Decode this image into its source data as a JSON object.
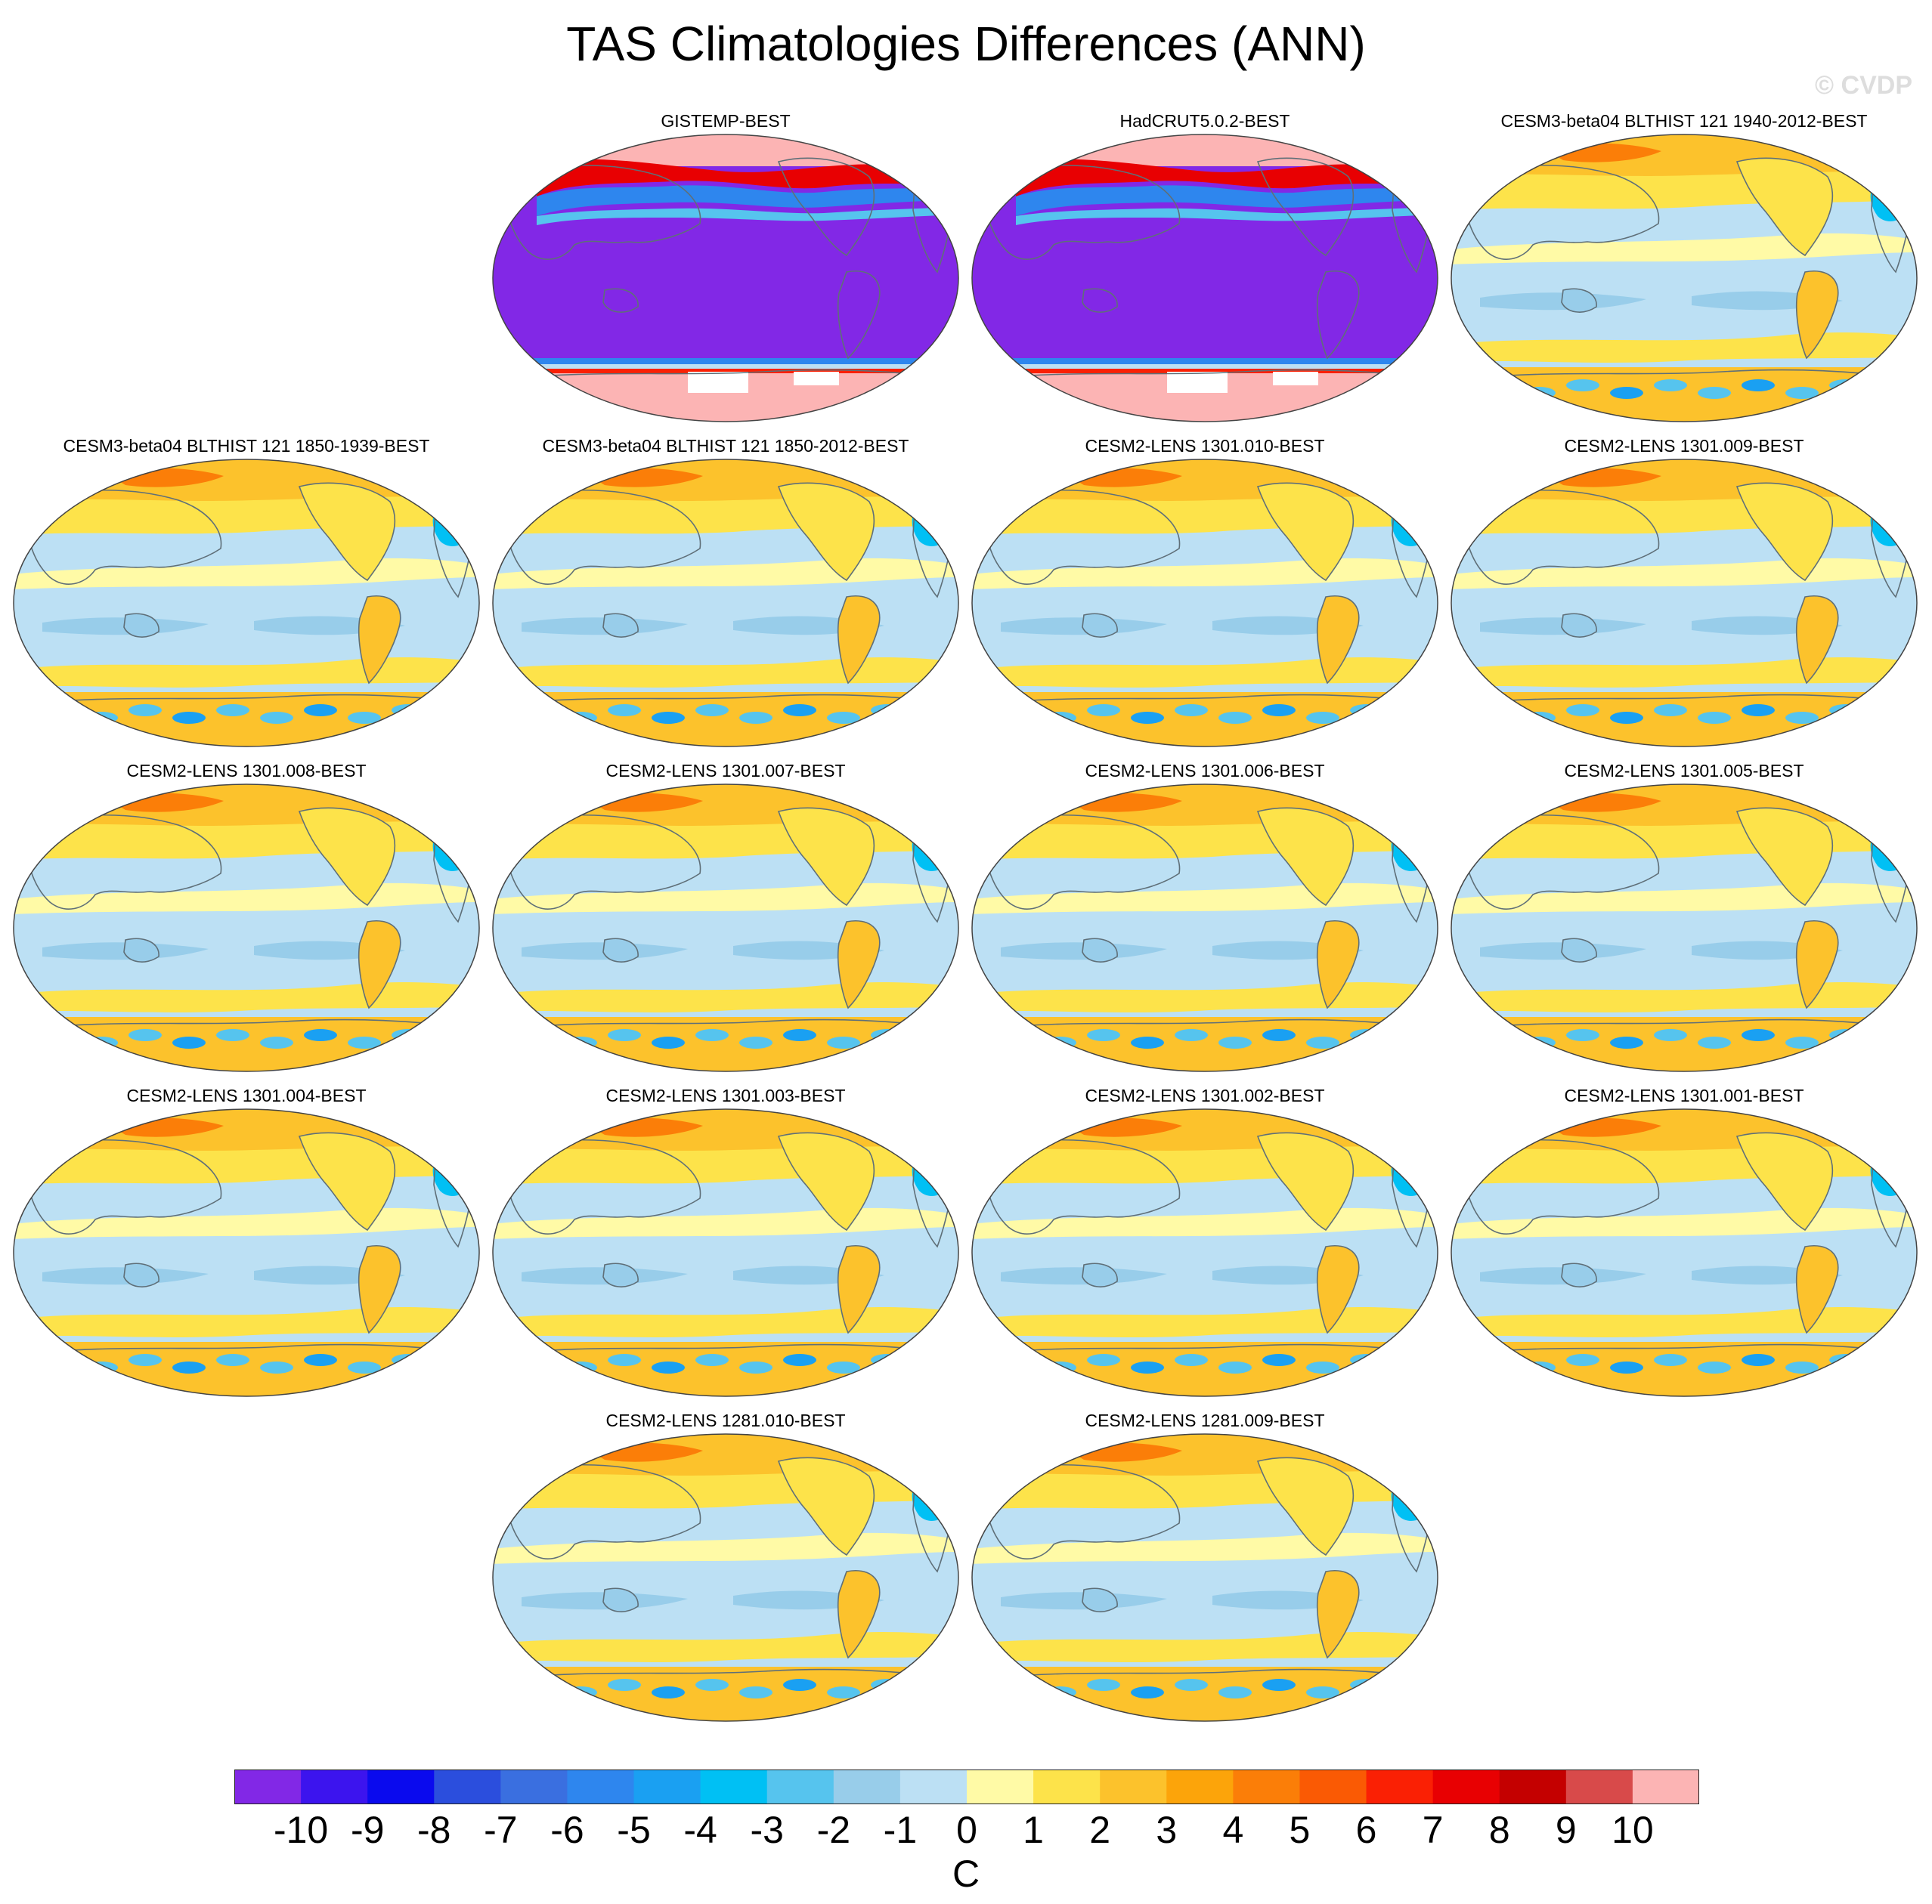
{
  "title": "TAS Climatologies Differences (ANN)",
  "watermark": "© CVDP",
  "panels": [
    {
      "label": "GISTEMP-BEST",
      "style": "obs"
    },
    {
      "label": "HadCRUT5.0.2-BEST",
      "style": "obs"
    },
    {
      "label": "CESM3-beta04 BLTHIST 121 1940-2012-BEST",
      "style": "model"
    },
    {
      "label": "CESM3-beta04 BLTHIST 121 1850-1939-BEST",
      "style": "model"
    },
    {
      "label": "CESM3-beta04 BLTHIST 121 1850-2012-BEST",
      "style": "model"
    },
    {
      "label": "CESM2-LENS 1301.010-BEST",
      "style": "model"
    },
    {
      "label": "CESM2-LENS 1301.009-BEST",
      "style": "model"
    },
    {
      "label": "CESM2-LENS 1301.008-BEST",
      "style": "model"
    },
    {
      "label": "CESM2-LENS 1301.007-BEST",
      "style": "model"
    },
    {
      "label": "CESM2-LENS 1301.006-BEST",
      "style": "model"
    },
    {
      "label": "CESM2-LENS 1301.005-BEST",
      "style": "model"
    },
    {
      "label": "CESM2-LENS 1301.004-BEST",
      "style": "model"
    },
    {
      "label": "CESM2-LENS 1301.003-BEST",
      "style": "model"
    },
    {
      "label": "CESM2-LENS 1301.002-BEST",
      "style": "model"
    },
    {
      "label": "CESM2-LENS 1301.001-BEST",
      "style": "model"
    },
    {
      "label": "CESM2-LENS 1281.010-BEST",
      "style": "model"
    },
    {
      "label": "CESM2-LENS 1281.009-BEST",
      "style": "model"
    }
  ],
  "colorbar": {
    "units": "C",
    "tick_labels": [
      "-10",
      "-9",
      "-8",
      "-7",
      "-6",
      "-5",
      "-4",
      "-3",
      "-2",
      "-1",
      "0",
      "1",
      "2",
      "3",
      "4",
      "5",
      "6",
      "7",
      "8",
      "9",
      "10"
    ],
    "colors": [
      "#8228e6",
      "#3c14ee",
      "#0a0aee",
      "#2b4edd",
      "#3a6fe0",
      "#2e86ee",
      "#1aa0f2",
      "#00c0f4",
      "#56c4ee",
      "#98cdea",
      "#bce0f4",
      "#fffaa6",
      "#fde34a",
      "#fcc22c",
      "#fca40a",
      "#fb7e08",
      "#fa5a04",
      "#fa2004",
      "#e80002",
      "#c40000",
      "#d84a4a",
      "#fcb4b4"
    ]
  }
}
